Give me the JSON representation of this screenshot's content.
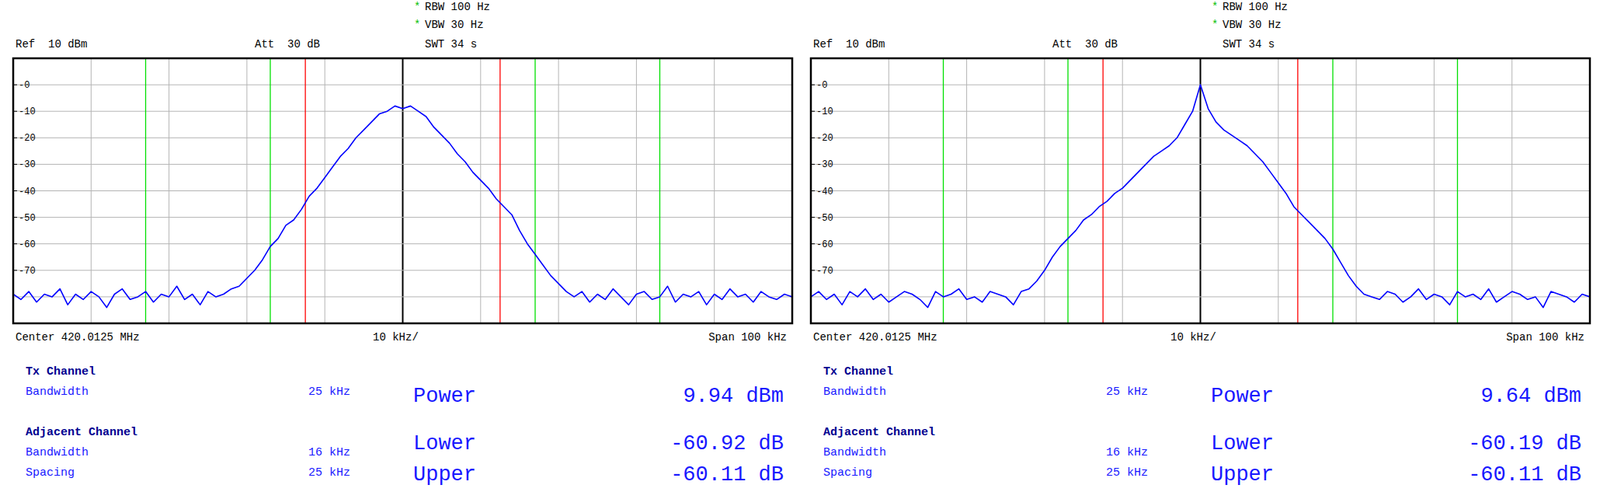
{
  "chart_data": [
    {
      "type": "line",
      "settings": [
        {
          "flag": "*",
          "text": "RBW 100 Hz"
        },
        {
          "flag": "*",
          "text": "VBW 30 Hz"
        },
        {
          "text": "SWT 34 s"
        }
      ],
      "ref_label": "Ref  10 dBm",
      "att_label": "Att  30 dB",
      "center_label": "Center 420.0125 MHz",
      "div_label": "10 kHz/",
      "span_label": "Span 100 kHz",
      "x": [
        -50,
        -49,
        -48,
        -47,
        -46,
        -45,
        -44,
        -43,
        -42,
        -41,
        -40,
        -39,
        -38,
        -37,
        -36,
        -35,
        -34,
        -33,
        -32,
        -31,
        -30,
        -29,
        -28,
        -27,
        -26,
        -25,
        -24,
        -23,
        -22,
        -21,
        -20,
        -19,
        -18,
        -17,
        -16,
        -15,
        -14,
        -13,
        -12,
        -11,
        -10,
        -9,
        -8,
        -7,
        -6,
        -5,
        -4,
        -3,
        -2,
        -1,
        0,
        1,
        2,
        3,
        4,
        5,
        6,
        7,
        8,
        9,
        10,
        11,
        12,
        13,
        14,
        15,
        16,
        17,
        18,
        19,
        20,
        21,
        22,
        23,
        24,
        25,
        26,
        27,
        28,
        29,
        30,
        31,
        32,
        33,
        34,
        35,
        36,
        37,
        38,
        39,
        40,
        41,
        42,
        43,
        44,
        45,
        46,
        47,
        48,
        49,
        50
      ],
      "series": [
        {
          "color": "#0000ff",
          "values": [
            -79,
            -81,
            -78,
            -82,
            -79,
            -80,
            -77,
            -83,
            -79,
            -81,
            -78,
            -80,
            -84,
            -79,
            -77,
            -81,
            -80,
            -78,
            -82,
            -79,
            -80,
            -76,
            -81,
            -79,
            -83,
            -78,
            -80,
            -79,
            -77,
            -76,
            -73,
            -70,
            -66,
            -61,
            -58,
            -53,
            -51,
            -47,
            -42,
            -39,
            -35,
            -31,
            -27,
            -24,
            -20,
            -17,
            -14,
            -11,
            -10,
            -8,
            -9,
            -8,
            -10,
            -12,
            -16,
            -19,
            -22,
            -26,
            -29,
            -33,
            -36,
            -39,
            -43,
            -46,
            -49,
            -55,
            -60,
            -64,
            -68,
            -72,
            -75,
            -78,
            -80,
            -78,
            -82,
            -79,
            -81,
            -77,
            -80,
            -83,
            -79,
            -78,
            -81,
            -80,
            -76,
            -82,
            -79,
            -80,
            -78,
            -83,
            -79,
            -81,
            -77,
            -80,
            -79,
            -82,
            -78,
            -80,
            -81,
            -79,
            -80
          ]
        }
      ],
      "xlim": [
        -50,
        50
      ],
      "ylim": [
        -90,
        10
      ],
      "xticks": [
        -40,
        -30,
        -20,
        -10,
        0,
        10,
        20,
        30,
        40
      ],
      "yticks": [
        {
          "value": 0,
          "label": "-0"
        },
        -10,
        -20,
        -30,
        -40,
        -50,
        -60,
        -70,
        {
          "value": -80,
          "label": null
        }
      ],
      "grid": true,
      "tick_labels": "y",
      "measurement": {
        "tx_heading": "Tx Channel",
        "tx_bandwidth_label": "Bandwidth",
        "tx_bandwidth": {
          "value": 25,
          "label": "25 kHz"
        },
        "power_label": "Power",
        "power": {
          "value": 9.94,
          "label": "9.94 dBm"
        },
        "adjacent_heading": "Adjacent Channel",
        "adjacent_bandwidth_label": "Bandwidth",
        "adjacent_bandwidth": {
          "value": 16,
          "label": "16 kHz"
        },
        "spacing_label": "Spacing",
        "adjacent_spacing": {
          "value": 25,
          "label": "25 kHz"
        },
        "lower_label": "Lower",
        "lower": {
          "value": -60.92,
          "label": "-60.92 dB"
        },
        "upper_label": "Upper",
        "upper": {
          "value": -60.11,
          "label": "-60.11 dB"
        }
      }
    },
    {
      "type": "line",
      "settings": [
        {
          "flag": "*",
          "text": "RBW 100 Hz"
        },
        {
          "flag": "*",
          "text": "VBW 30 Hz"
        },
        {
          "text": "SWT 34 s"
        }
      ],
      "ref_label": "Ref  10 dBm",
      "att_label": "Att  30 dB",
      "center_label": "Center 420.0125 MHz",
      "div_label": "10 kHz/",
      "span_label": "Span 100 kHz",
      "x": [
        -50,
        -49,
        -48,
        -47,
        -46,
        -45,
        -44,
        -43,
        -42,
        -41,
        -40,
        -39,
        -38,
        -37,
        -36,
        -35,
        -34,
        -33,
        -32,
        -31,
        -30,
        -29,
        -28,
        -27,
        -26,
        -25,
        -24,
        -23,
        -22,
        -21,
        -20,
        -19,
        -18,
        -17,
        -16,
        -15,
        -14,
        -13,
        -12,
        -11,
        -10,
        -9,
        -8,
        -7,
        -6,
        -5,
        -4,
        -3,
        -2,
        -1,
        0,
        1,
        2,
        3,
        4,
        5,
        6,
        7,
        8,
        9,
        10,
        11,
        12,
        13,
        14,
        15,
        16,
        17,
        18,
        19,
        20,
        21,
        22,
        23,
        24,
        25,
        26,
        27,
        28,
        29,
        30,
        31,
        32,
        33,
        34,
        35,
        36,
        37,
        38,
        39,
        40,
        41,
        42,
        43,
        44,
        45,
        46,
        47,
        48,
        49,
        50
      ],
      "series": [
        {
          "color": "#0000ff",
          "values": [
            -80,
            -78,
            -81,
            -79,
            -83,
            -78,
            -80,
            -77,
            -81,
            -79,
            -82,
            -80,
            -78,
            -79,
            -81,
            -84,
            -78,
            -80,
            -79,
            -77,
            -81,
            -80,
            -82,
            -78,
            -79,
            -80,
            -83,
            -78,
            -77,
            -74,
            -70,
            -65,
            -61,
            -58,
            -55,
            -51,
            -49,
            -46,
            -44,
            -41,
            -39,
            -36,
            -33,
            -30,
            -27,
            -25,
            -23,
            -20,
            -15,
            -10,
            0,
            -9,
            -14,
            -17,
            -19,
            -21,
            -23,
            -26,
            -29,
            -33,
            -37,
            -41,
            -46,
            -49,
            -52,
            -55,
            -58,
            -62,
            -67,
            -72,
            -76,
            -79,
            -80,
            -81,
            -78,
            -79,
            -82,
            -80,
            -77,
            -81,
            -79,
            -80,
            -83,
            -78,
            -80,
            -79,
            -81,
            -77,
            -82,
            -80,
            -78,
            -79,
            -81,
            -80,
            -84,
            -78,
            -79,
            -80,
            -82,
            -79,
            -80
          ]
        }
      ],
      "xlim": [
        -50,
        50
      ],
      "ylim": [
        -90,
        10
      ],
      "xticks": [
        -40,
        -30,
        -20,
        -10,
        0,
        10,
        20,
        30,
        40
      ],
      "yticks": [
        {
          "value": 0,
          "label": "-0"
        },
        -10,
        -20,
        -30,
        -40,
        -50,
        -60,
        -70,
        {
          "value": -80,
          "label": null
        }
      ],
      "grid": true,
      "tick_labels": "y",
      "measurement": {
        "tx_heading": "Tx Channel",
        "tx_bandwidth_label": "Bandwidth",
        "tx_bandwidth": {
          "value": 25,
          "label": "25 kHz"
        },
        "power_label": "Power",
        "power": {
          "value": 9.64,
          "label": "9.64 dBm"
        },
        "adjacent_heading": "Adjacent Channel",
        "adjacent_bandwidth_label": "Bandwidth",
        "adjacent_bandwidth": {
          "value": 16,
          "label": "16 kHz"
        },
        "spacing_label": "Spacing",
        "adjacent_spacing": {
          "value": 25,
          "label": "25 kHz"
        },
        "lower_label": "Lower",
        "lower": {
          "value": -60.19,
          "label": "-60.19 dB"
        },
        "upper_label": "Upper",
        "upper": {
          "value": -60.11,
          "label": "-60.11 dB"
        }
      }
    }
  ]
}
